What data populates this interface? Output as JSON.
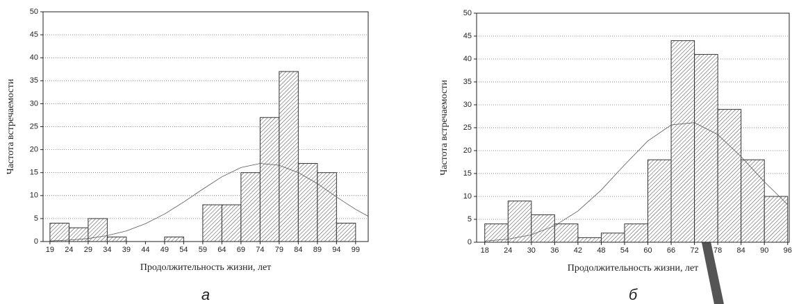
{
  "chart_data": [
    {
      "type": "histogram",
      "caption": "а",
      "x_label": "Продолжительность жизни, лет",
      "y_label": "Частота встречаемости",
      "bins": [
        19,
        24,
        29,
        34,
        39,
        44,
        49,
        54,
        59,
        64,
        69,
        74,
        79,
        84,
        89,
        94,
        99
      ],
      "values": [
        4,
        3,
        5,
        1,
        0,
        0,
        1,
        0,
        8,
        8,
        15,
        27,
        37,
        17,
        15,
        4
      ],
      "color": "#333333",
      "grid": true,
      "xlim": [
        17.2,
        102.3
      ],
      "ylim": [
        0,
        50
      ],
      "xticks": [
        19,
        24,
        29,
        34,
        39,
        44,
        49,
        54,
        59,
        64,
        69,
        74,
        79,
        84,
        89,
        94,
        99
      ],
      "yticks": [
        0,
        5,
        10,
        15,
        20,
        25,
        30,
        35,
        40,
        45,
        50
      ],
      "curve": {
        "x": [
          19,
          24,
          29,
          34,
          39,
          44,
          49,
          54,
          59,
          64,
          69,
          74,
          79,
          84,
          89,
          94,
          99,
          102.3
        ],
        "values": [
          0.13,
          0.31,
          0.65,
          1.3,
          2.3,
          3.9,
          6.0,
          8.6,
          11.4,
          14.1,
          16.1,
          17.0,
          16.6,
          15.0,
          12.6,
          9.7,
          7.0,
          5.5
        ]
      }
    },
    {
      "type": "histogram",
      "caption": "б",
      "x_label": "Продолжительность жизни, лет",
      "y_label": "Частота встречаемости",
      "bins": [
        18,
        24,
        30,
        36,
        42,
        48,
        54,
        60,
        66,
        72,
        78,
        84,
        90,
        96
      ],
      "values": [
        4,
        9,
        6,
        4,
        1,
        2,
        4,
        18,
        44,
        41,
        29,
        18,
        10
      ],
      "color": "#333333",
      "grid": true,
      "xlim": [
        15.9,
        96.4
      ],
      "ylim": [
        0,
        50
      ],
      "xticks": [
        18,
        24,
        30,
        36,
        42,
        48,
        54,
        60,
        66,
        72,
        78,
        84,
        90,
        96
      ],
      "yticks": [
        0,
        5,
        10,
        15,
        20,
        25,
        30,
        35,
        40,
        45,
        50
      ],
      "curve": {
        "x": [
          18,
          24,
          30,
          36,
          42,
          48,
          54,
          60,
          66,
          72,
          78,
          84,
          90,
          96
        ],
        "values": [
          0.24,
          0.68,
          1.6,
          3.6,
          6.8,
          11.4,
          16.9,
          22.1,
          25.6,
          26.1,
          23.5,
          18.7,
          13.2,
          8.2
        ]
      }
    }
  ]
}
